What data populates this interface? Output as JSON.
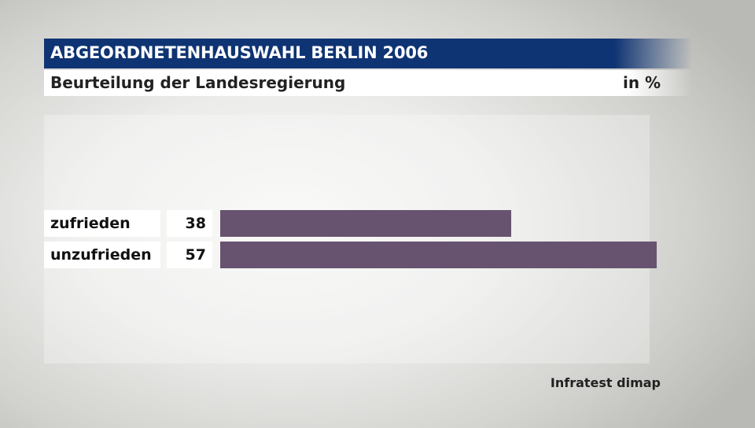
{
  "header": {
    "title": "ABGEORDNETENHAUSWAHL BERLIN 2006",
    "subtitle": "Beurteilung der Landesregierung",
    "unit": "in %"
  },
  "source": "Infratest dimap",
  "colors": {
    "bar": "#67536f",
    "title_bg": "#0f3473"
  },
  "chart_data": {
    "type": "bar",
    "orientation": "horizontal",
    "title": "Beurteilung der Landesregierung",
    "unit": "in %",
    "categories": [
      "zufrieden",
      "unzufrieden"
    ],
    "values": [
      38,
      57
    ],
    "value_labels": [
      "38",
      "57"
    ]
  }
}
